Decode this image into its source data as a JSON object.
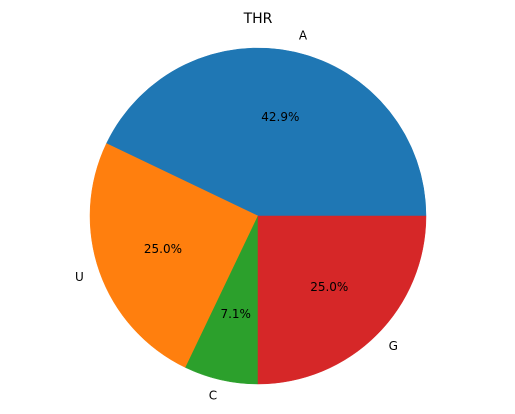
{
  "chart_data": {
    "type": "pie",
    "title": "THR",
    "categories": [
      "A",
      "U",
      "C",
      "G"
    ],
    "values": [
      42.9,
      25.0,
      7.1,
      25.0
    ],
    "percent_labels": [
      "42.9%",
      "25.0%",
      "7.1%",
      "25.0%"
    ],
    "colors": [
      "#1f77b4",
      "#ff7f0e",
      "#2ca02c",
      "#d62728"
    ],
    "start_angle_deg": 0,
    "direction": "counterclockwise",
    "legend": "none"
  }
}
